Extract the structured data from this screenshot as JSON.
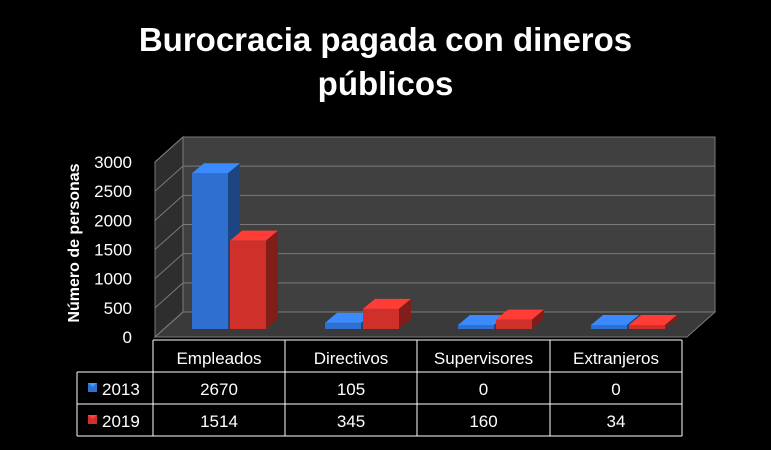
{
  "chart_data": {
    "type": "bar",
    "title_line1": "Burocracia pagada con dineros",
    "title_line2": "públicos",
    "ylabel": "Número de personas",
    "xlabel": "",
    "categories": [
      "Empleados",
      "Directivos",
      "Supervisores",
      "Extranjeros"
    ],
    "series": [
      {
        "name": "2013",
        "values": [
          2670,
          105,
          0,
          0
        ],
        "color": "#2f6fd0"
      },
      {
        "name": "2019",
        "values": [
          1514,
          345,
          160,
          34
        ],
        "color": "#d0302a"
      }
    ],
    "ylim": [
      0,
      3000
    ],
    "yticks": [
      "0",
      "500",
      "1000",
      "1500",
      "2000",
      "2500",
      "3000"
    ],
    "table": {
      "rows": [
        {
          "series": "2013",
          "cells": [
            "2670",
            "105",
            "0",
            "0"
          ]
        },
        {
          "series": "2019",
          "cells": [
            "1514",
            "345",
            "160",
            "34"
          ]
        }
      ]
    },
    "grid": true,
    "legend": "data-table"
  }
}
